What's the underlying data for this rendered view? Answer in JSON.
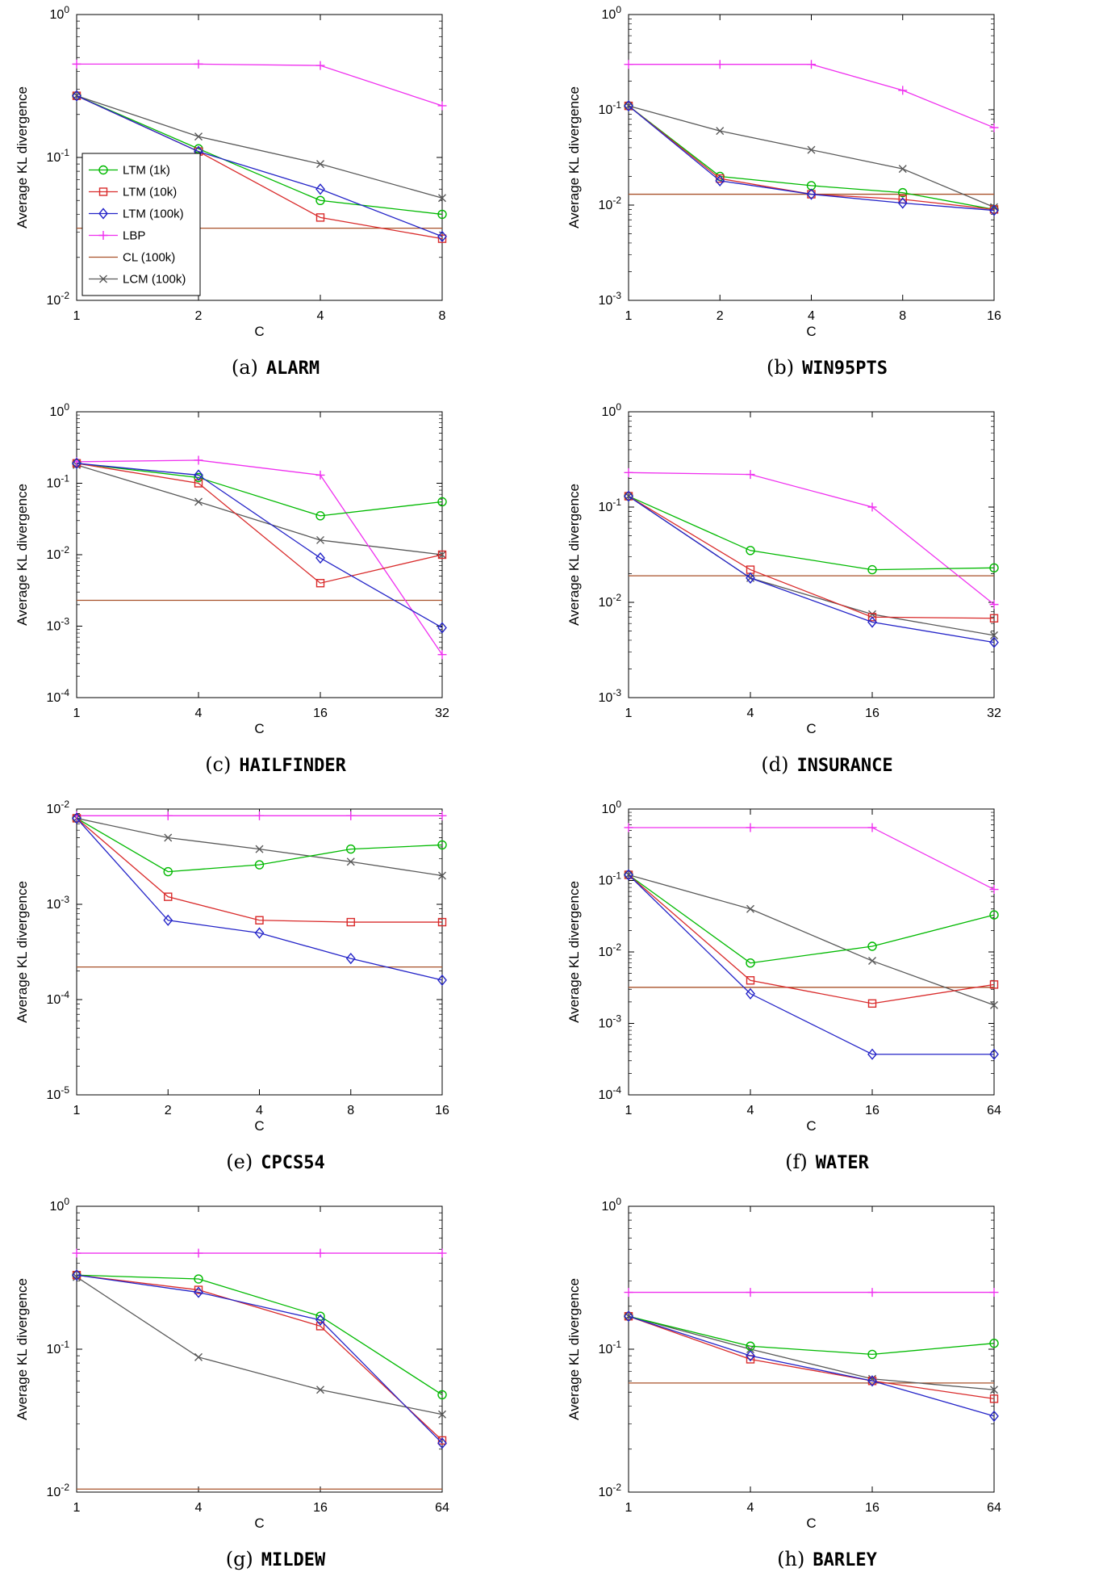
{
  "axes_labels": {
    "xlabel": "C",
    "ylabel": "Average KL divergence"
  },
  "legend": {
    "position": "left-middle-inside-first-chart",
    "entries": [
      "LTM (1k)",
      "LTM (10k)",
      "LTM (100k)",
      "LBP",
      "CL (100k)",
      "LCM (100k)"
    ]
  },
  "series_styles": [
    {
      "name": "LTM (1k)",
      "color": "#00b900",
      "marker": "circle"
    },
    {
      "name": "LTM (10k)",
      "color": "#d92b2b",
      "marker": "square"
    },
    {
      "name": "LTM (100k)",
      "color": "#2424c8",
      "marker": "diamond"
    },
    {
      "name": "LBP",
      "color": "#ef30ef",
      "marker": "plus"
    },
    {
      "name": "CL (100k)",
      "color": "#a8522a",
      "marker": "none"
    },
    {
      "name": "LCM (100k)",
      "color": "#595959",
      "marker": "x"
    }
  ],
  "chart_data": [
    {
      "type": "line",
      "caption": {
        "prefix": "(a)",
        "name": "ALARM"
      },
      "xlabel": "C",
      "ylabel": "Average KL divergence",
      "x_scale": "log2-ticks",
      "y_scale": "log10",
      "categories": [
        1,
        2,
        4,
        8
      ],
      "ylim": [
        0.01,
        1
      ],
      "show_legend": true,
      "series": [
        {
          "name": "LTM (1k)",
          "values": [
            0.27,
            0.115,
            0.05,
            0.04
          ]
        },
        {
          "name": "LTM (10k)",
          "values": [
            0.27,
            0.11,
            0.038,
            0.027
          ]
        },
        {
          "name": "LTM (100k)",
          "values": [
            0.27,
            0.11,
            0.06,
            0.028
          ]
        },
        {
          "name": "LBP",
          "values": [
            0.45,
            0.45,
            0.44,
            0.23
          ]
        },
        {
          "name": "CL (100k)",
          "constant": 0.032
        },
        {
          "name": "LCM (100k)",
          "values": [
            0.27,
            0.14,
            0.09,
            0.052
          ]
        }
      ]
    },
    {
      "type": "line",
      "caption": {
        "prefix": "(b)",
        "name": "WIN95PTS"
      },
      "xlabel": "C",
      "ylabel": "Average KL divergence",
      "x_scale": "log2-ticks",
      "y_scale": "log10",
      "categories": [
        1,
        2,
        4,
        8,
        16
      ],
      "ylim": [
        0.001,
        1
      ],
      "show_legend": false,
      "series": [
        {
          "name": "LTM (1k)",
          "values": [
            0.11,
            0.02,
            0.016,
            0.0135,
            0.009
          ]
        },
        {
          "name": "LTM (10k)",
          "values": [
            0.11,
            0.019,
            0.013,
            0.0115,
            0.009
          ]
        },
        {
          "name": "LTM (100k)",
          "values": [
            0.11,
            0.018,
            0.013,
            0.0105,
            0.0088
          ]
        },
        {
          "name": "LBP",
          "values": [
            0.3,
            0.3,
            0.3,
            0.16,
            0.065
          ]
        },
        {
          "name": "CL (100k)",
          "constant": 0.013
        },
        {
          "name": "LCM (100k)",
          "values": [
            0.11,
            0.06,
            0.038,
            0.024,
            0.0095
          ]
        }
      ]
    },
    {
      "type": "line",
      "caption": {
        "prefix": "(c)",
        "name": "HAILFINDER"
      },
      "xlabel": "C",
      "ylabel": "Average KL divergence",
      "x_scale": "log2-ticks",
      "y_scale": "log10",
      "categories": [
        1,
        4,
        16,
        32
      ],
      "ylim": [
        0.0001,
        1
      ],
      "show_legend": false,
      "series": [
        {
          "name": "LTM (1k)",
          "values": [
            0.19,
            0.12,
            0.035,
            0.055
          ]
        },
        {
          "name": "LTM (10k)",
          "values": [
            0.19,
            0.1,
            0.004,
            0.01
          ]
        },
        {
          "name": "LTM (100k)",
          "values": [
            0.19,
            0.13,
            0.009,
            0.00095
          ]
        },
        {
          "name": "LBP",
          "values": [
            0.2,
            0.21,
            0.13,
            0.0004
          ]
        },
        {
          "name": "CL (100k)",
          "constant": 0.0023
        },
        {
          "name": "LCM (100k)",
          "values": [
            0.18,
            0.055,
            0.016,
            0.01
          ]
        }
      ]
    },
    {
      "type": "line",
      "caption": {
        "prefix": "(d)",
        "name": "INSURANCE"
      },
      "xlabel": "C",
      "ylabel": "Average KL divergence",
      "x_scale": "log2-ticks",
      "y_scale": "log10",
      "categories": [
        1,
        4,
        16,
        32
      ],
      "ylim": [
        0.001,
        1
      ],
      "show_legend": false,
      "series": [
        {
          "name": "LTM (1k)",
          "values": [
            0.13,
            0.035,
            0.022,
            0.023
          ]
        },
        {
          "name": "LTM (10k)",
          "values": [
            0.13,
            0.022,
            0.007,
            0.0068
          ]
        },
        {
          "name": "LTM (100k)",
          "values": [
            0.13,
            0.018,
            0.0062,
            0.0038
          ]
        },
        {
          "name": "LBP",
          "values": [
            0.23,
            0.22,
            0.1,
            0.0095
          ]
        },
        {
          "name": "CL (100k)",
          "constant": 0.019
        },
        {
          "name": "LCM (100k)",
          "values": [
            0.13,
            0.018,
            0.0075,
            0.0045
          ]
        }
      ]
    },
    {
      "type": "line",
      "caption": {
        "prefix": "(e)",
        "name": "CPCS54"
      },
      "xlabel": "C",
      "ylabel": "Average KL divergence",
      "x_scale": "log2-ticks",
      "y_scale": "log10",
      "categories": [
        1,
        2,
        4,
        8,
        16
      ],
      "ylim": [
        1e-05,
        0.01
      ],
      "show_legend": false,
      "series": [
        {
          "name": "LTM (1k)",
          "values": [
            0.008,
            0.0022,
            0.0026,
            0.0038,
            0.0042
          ]
        },
        {
          "name": "LTM (10k)",
          "values": [
            0.008,
            0.0012,
            0.00068,
            0.00065,
            0.00065
          ]
        },
        {
          "name": "LTM (100k)",
          "values": [
            0.008,
            0.00068,
            0.0005,
            0.00027,
            0.00016
          ]
        },
        {
          "name": "LBP",
          "values": [
            0.0085,
            0.0085,
            0.0085,
            0.0085,
            0.0085
          ]
        },
        {
          "name": "CL (100k)",
          "constant": 0.00022
        },
        {
          "name": "LCM (100k)",
          "values": [
            0.008,
            0.005,
            0.0038,
            0.0028,
            0.002
          ]
        }
      ]
    },
    {
      "type": "line",
      "caption": {
        "prefix": "(f)",
        "name": "WATER"
      },
      "xlabel": "C",
      "ylabel": "Average KL divergence",
      "x_scale": "log2-ticks",
      "y_scale": "log10",
      "categories": [
        1,
        4,
        16,
        64
      ],
      "ylim": [
        0.0001,
        1
      ],
      "show_legend": false,
      "series": [
        {
          "name": "LTM (1k)",
          "values": [
            0.12,
            0.007,
            0.012,
            0.033
          ]
        },
        {
          "name": "LTM (10k)",
          "values": [
            0.12,
            0.004,
            0.0019,
            0.0035
          ]
        },
        {
          "name": "LTM (100k)",
          "values": [
            0.12,
            0.0026,
            0.00037,
            0.00037
          ]
        },
        {
          "name": "LBP",
          "values": [
            0.55,
            0.55,
            0.55,
            0.075
          ]
        },
        {
          "name": "CL (100k)",
          "constant": 0.0032
        },
        {
          "name": "LCM (100k)",
          "values": [
            0.12,
            0.04,
            0.0075,
            0.0018
          ]
        }
      ]
    },
    {
      "type": "line",
      "caption": {
        "prefix": "(g)",
        "name": "MILDEW"
      },
      "xlabel": "C",
      "ylabel": "Average KL divergence",
      "x_scale": "log2-ticks",
      "y_scale": "log10",
      "categories": [
        1,
        4,
        16,
        64
      ],
      "ylim": [
        0.01,
        1
      ],
      "show_legend": false,
      "series": [
        {
          "name": "LTM (1k)",
          "values": [
            0.33,
            0.31,
            0.17,
            0.048
          ]
        },
        {
          "name": "LTM (10k)",
          "values": [
            0.33,
            0.26,
            0.145,
            0.023
          ]
        },
        {
          "name": "LTM (100k)",
          "values": [
            0.33,
            0.25,
            0.16,
            0.022
          ]
        },
        {
          "name": "LBP",
          "values": [
            0.47,
            0.47,
            0.47,
            0.47
          ]
        },
        {
          "name": "CL (100k)",
          "constant": 0.0105
        },
        {
          "name": "LCM (100k)",
          "values": [
            0.32,
            0.088,
            0.052,
            0.035
          ]
        }
      ]
    },
    {
      "type": "line",
      "caption": {
        "prefix": "(h)",
        "name": "BARLEY"
      },
      "xlabel": "C",
      "ylabel": "Average KL divergence",
      "x_scale": "log2-ticks",
      "y_scale": "log10",
      "categories": [
        1,
        4,
        16,
        64
      ],
      "ylim": [
        0.01,
        1
      ],
      "show_legend": false,
      "series": [
        {
          "name": "LTM (1k)",
          "values": [
            0.17,
            0.105,
            0.092,
            0.11
          ]
        },
        {
          "name": "LTM (10k)",
          "values": [
            0.17,
            0.085,
            0.06,
            0.045
          ]
        },
        {
          "name": "LTM (100k)",
          "values": [
            0.17,
            0.09,
            0.06,
            0.034
          ]
        },
        {
          "name": "LBP",
          "values": [
            0.25,
            0.25,
            0.25,
            0.25
          ]
        },
        {
          "name": "CL (100k)",
          "constant": 0.058
        },
        {
          "name": "LCM (100k)",
          "values": [
            0.17,
            0.1,
            0.062,
            0.052
          ]
        }
      ]
    }
  ]
}
